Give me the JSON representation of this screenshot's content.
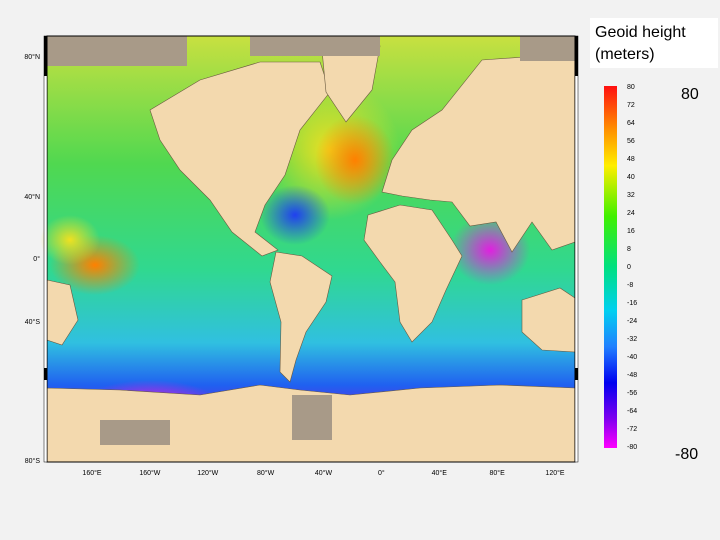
{
  "title": {
    "line1": "Geoid height",
    "line2": "(meters)"
  },
  "colorbar": {
    "max_label": "80",
    "min_label": "-80",
    "ticks": [
      80,
      72,
      64,
      56,
      48,
      40,
      32,
      24,
      16,
      8,
      0,
      -8,
      -16,
      -24,
      -32,
      -40,
      -48,
      -56,
      -64,
      -72,
      -80
    ]
  },
  "map": {
    "lat_labels": [
      "80°N",
      "40°N",
      "0°",
      "40°S",
      "80°S"
    ],
    "lon_labels": [
      "160°E",
      "160°W",
      "120°W",
      "80°W",
      "40°W",
      "0°",
      "40°E",
      "80°E",
      "120°E"
    ]
  }
}
